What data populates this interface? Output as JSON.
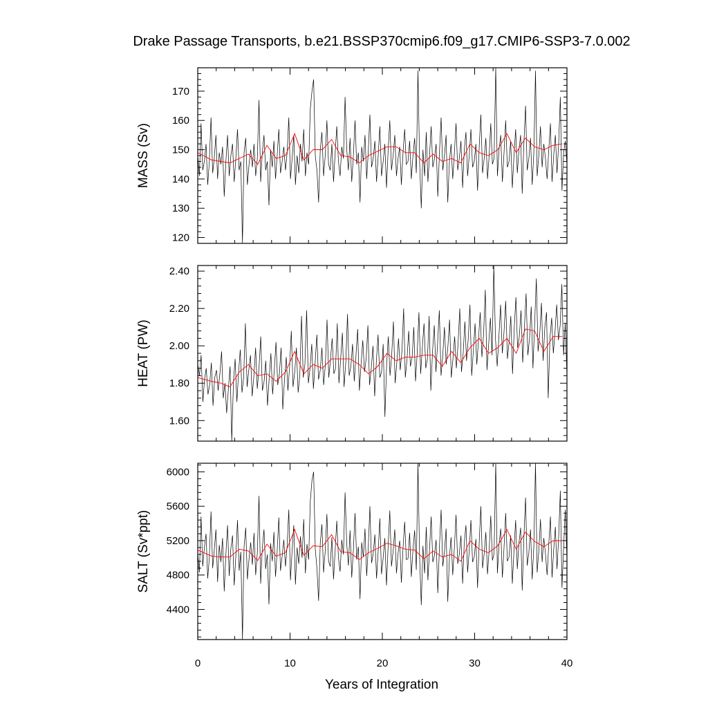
{
  "chart_data": {
    "type": "line",
    "title": "Drake Passage Transports, b.e21.BSSP370cmip6.f09_g17.CMIP6-SSP3-7.0.002",
    "xlabel": "Years of Integration",
    "xlim": [
      0,
      40
    ],
    "xticks": [
      0,
      10,
      20,
      30,
      40
    ],
    "xtick_labels": [
      "0",
      "10",
      "20",
      "30",
      "40"
    ],
    "colors": {
      "monthly": "#000000",
      "annual": "#ff0000"
    },
    "panels": [
      {
        "ylabel": "MASS (Sv)",
        "ylim": [
          118,
          178
        ],
        "yticks": [
          120,
          130,
          140,
          150,
          160,
          170
        ],
        "ytick_labels": [
          "120",
          "130",
          "140",
          "150",
          "160",
          "170"
        ],
        "series": [
          {
            "values": [
              148,
              141,
              159,
              143,
              146,
              152,
              138,
              146,
              161,
              142,
              147,
              155,
              140,
              149,
              145,
              151,
              134,
              146,
              155,
              141,
              148,
              152,
              139,
              147,
              157,
              143,
              146,
              118,
              149,
              154,
              138,
              145,
              150,
              144,
              152,
              141,
              147,
              167,
              139,
              149,
              155,
              143,
              146,
              131,
              150,
              144,
              153,
              140,
              148,
              157,
              142,
              146,
              151,
              143,
              149,
              161,
              140,
              147,
              155,
              138,
              148,
              142,
              152,
              146,
              157,
              141,
              149,
              145,
              164,
              170,
              174,
              148,
              143,
              132,
              150,
              156,
              141,
              148,
              160,
              145,
              143,
              152,
              139,
              149,
              158,
              146,
              141,
              151,
              147,
              168,
              150,
              143,
              154,
              139,
              148,
              160,
              145,
              149,
              132,
              151,
              146,
              155,
              140,
              149,
              162,
              144,
              147,
              153,
              139,
              148,
              158,
              141,
              146,
              152,
              137,
              150,
              160,
              143,
              148,
              155,
              141,
              147,
              151,
              138,
              149,
              157,
              145,
              146,
              153,
              140,
              148,
              154,
              142,
              177,
              146,
              130,
              150,
              141,
              156,
              139,
              148,
              158,
              144,
              147,
              152,
              134,
              149,
              161,
              143,
              148,
              155,
              132,
              146,
              152,
              140,
              149,
              159,
              143,
              147,
              153,
              137,
              150,
              156,
              141,
              148,
              157,
              144,
              146,
              152,
              136,
              151,
              162,
              142,
              147,
              154,
              140,
              148,
              159,
              145,
              147,
              178,
              141,
              150,
              155,
              139,
              149,
              160,
              144,
              146,
              153,
              137,
              148,
              157,
              142,
              150,
              155,
              135,
              152,
              165,
              143,
              147,
              154,
              138,
              149,
              177,
              141,
              148,
              158,
              144,
              152,
              147,
              140,
              150,
              159,
              139,
              148,
              155,
              142,
              152,
              168,
              136,
              149,
              153,
              145
            ],
            "year_step": 0.06
          },
          {
            "x": [
              0,
              1.5,
              2.5,
              3.5,
              4.5,
              5.5,
              6.5,
              7.5,
              8.5,
              9.5,
              10.5,
              11.5,
              12.5,
              13.5,
              14.5,
              15.5,
              16.5,
              17.5,
              18.5,
              19.5,
              20.5,
              21.5,
              22.5,
              23.5,
              24.5,
              25.5,
              26.5,
              27.5,
              28.5,
              29.5,
              30.5,
              31.5,
              32.5,
              33.5,
              34.5,
              35.5,
              36.5,
              37.5,
              38.5,
              39.5
            ],
            "values": [
              149,
              146.5,
              146,
              145.5,
              147,
              148.5,
              145,
              151.5,
              147,
              148,
              155.5,
              146.5,
              150,
              150,
              153.5,
              148,
              147.5,
              145.5,
              148,
              149.5,
              151,
              151,
              149,
              149,
              145.5,
              148.5,
              146,
              147,
              145.5,
              152,
              149,
              148,
              150,
              155.5,
              149,
              154,
              151,
              150,
              151.5,
              152
            ]
          }
        ]
      },
      {
        "ylabel": "HEAT (PW)",
        "ylim": [
          1.49,
          2.43
        ],
        "yticks": [
          1.6,
          1.8,
          2.0,
          2.2,
          2.4
        ],
        "ytick_labels": [
          "1.60",
          "1.80",
          "2.00",
          "2.20",
          "2.40"
        ],
        "series": [
          {
            "values": [
              1.9,
              1.84,
              1.95,
              1.7,
              1.82,
              1.88,
              1.74,
              1.79,
              1.91,
              1.68,
              1.83,
              1.87,
              1.76,
              1.85,
              1.97,
              1.72,
              1.8,
              1.64,
              1.77,
              1.89,
              1.49,
              1.81,
              1.93,
              1.7,
              1.86,
              1.98,
              1.75,
              1.83,
              2.12,
              1.78,
              1.87,
              1.95,
              1.73,
              1.84,
              1.99,
              1.77,
              1.88,
              2.05,
              1.76,
              1.81,
              1.92,
              1.68,
              1.83,
              1.96,
              1.74,
              1.87,
              2.02,
              1.79,
              1.85,
              1.99,
              1.66,
              1.82,
              1.94,
              1.76,
              1.89,
              2.08,
              1.78,
              1.86,
              1.99,
              1.75,
              1.84,
              2.16,
              1.83,
              1.9,
              2.19,
              1.8,
              1.88,
              2.01,
              1.77,
              1.91,
              2.06,
              1.82,
              1.87,
              1.99,
              1.79,
              1.9,
              2.14,
              1.83,
              1.92,
              2.04,
              1.85,
              1.88,
              2.12,
              1.8,
              1.93,
              2.07,
              1.78,
              1.91,
              2.17,
              1.84,
              1.89,
              2.01,
              1.81,
              1.95,
              2.09,
              1.76,
              1.9,
              2.03,
              1.86,
              1.93,
              2.11,
              1.79,
              1.88,
              2.0,
              1.73,
              1.92,
              2.06,
              1.83,
              1.86,
              2.01,
              1.62,
              1.9,
              2.05,
              1.84,
              1.95,
              2.13,
              1.8,
              1.91,
              2.04,
              1.87,
              1.97,
              2.2,
              1.83,
              1.93,
              2.08,
              1.89,
              1.94,
              2.1,
              1.81,
              1.96,
              2.18,
              1.85,
              1.99,
              2.12,
              1.88,
              1.93,
              2.16,
              1.76,
              1.97,
              2.11,
              1.86,
              2.02,
              2.19,
              1.84,
              1.95,
              2.1,
              1.9,
              1.99,
              2.14,
              1.83,
              1.93,
              2.05,
              1.88,
              2.01,
              2.2,
              1.86,
              1.96,
              2.13,
              1.92,
              2.04,
              2.22,
              1.84,
              1.98,
              2.12,
              1.9,
              2.03,
              2.18,
              1.94,
              2.06,
              2.3,
              1.87,
              2.01,
              2.15,
              1.95,
              2.43,
              2.04,
              1.89,
              2.05,
              2.22,
              1.96,
              2.07,
              2.24,
              1.93,
              2.02,
              2.16,
              1.85,
              2.09,
              2.26,
              1.99,
              2.05,
              2.19,
              1.91,
              2.1,
              2.28,
              1.95,
              2.04,
              2.21,
              1.88,
              2.11,
              2.36,
              1.97,
              2.06,
              2.23,
              1.92,
              2.1,
              2.18,
              1.72,
              2.04,
              2.15,
              1.96,
              2.08,
              2.22,
              2.03,
              2.11,
              2.33,
              1.95,
              2.12,
              1.84
            ],
            "year_step": 0.06
          },
          {
            "x": [
              0,
              1.5,
              2.5,
              3.5,
              4.5,
              5.5,
              6.5,
              7.5,
              8.5,
              9.5,
              10.5,
              11.5,
              12.5,
              13.5,
              14.5,
              15.5,
              16.5,
              17.5,
              18.5,
              19.5,
              20.5,
              21.5,
              22.5,
              23.5,
              24.5,
              25.5,
              26.5,
              27.5,
              28.5,
              29.5,
              30.5,
              31.5,
              32.5,
              33.5,
              34.5,
              35.5,
              36.5,
              37.5,
              38.5,
              39.5
            ],
            "values": [
              1.83,
              1.81,
              1.8,
              1.78,
              1.86,
              1.9,
              1.84,
              1.85,
              1.81,
              1.86,
              1.97,
              1.85,
              1.9,
              1.88,
              1.93,
              1.93,
              1.93,
              1.9,
              1.85,
              1.89,
              1.96,
              1.92,
              1.94,
              1.94,
              1.95,
              1.95,
              1.89,
              1.97,
              1.91,
              1.99,
              2.04,
              1.96,
              1.99,
              2.04,
              1.96,
              2.09,
              2.08,
              1.97,
              2.05,
              2.05
            ]
          }
        ]
      },
      {
        "ylabel": "SALT (Sv*ppt)",
        "ylim": [
          4050,
          6100
        ],
        "yticks": [
          4400,
          4800,
          5200,
          5600,
          6000
        ],
        "ytick_labels": [
          "4400",
          "4800",
          "5200",
          "5600",
          "6000"
        ],
        "series": [
          {
            "values": [
              5050,
              4830,
              5480,
              4900,
              5120,
              5280,
              4760,
              5010,
              5540,
              4880,
              5090,
              5330,
              4720,
              5150,
              4950,
              5230,
              4610,
              5040,
              5380,
              4790,
              5110,
              5260,
              4680,
              5020,
              5440,
              4850,
              5070,
              4050,
              5130,
              5350,
              4750,
              4990,
              5180,
              4920,
              5290,
              4800,
              5060,
              5720,
              4700,
              5110,
              5330,
              4870,
              5040,
              4460,
              5170,
              4960,
              5300,
              4780,
              5080,
              5470,
              4850,
              5020,
              5210,
              4900,
              5140,
              5560,
              4740,
              5090,
              5380,
              4690,
              5120,
              4930,
              5250,
              5000,
              5450,
              4820,
              5160,
              4980,
              5660,
              5900,
              6000,
              5100,
              4880,
              4500,
              5170,
              5390,
              4830,
              5080,
              5510,
              4960,
              4900,
              5240,
              4750,
              5100,
              5430,
              5000,
              4840,
              5210,
              5040,
              5760,
              5160,
              4910,
              5320,
              4770,
              5090,
              5520,
              4980,
              5130,
              4520,
              5180,
              5010,
              5340,
              4790,
              5110,
              5600,
              4940,
              5050,
              5270,
              4760,
              5080,
              5460,
              4810,
              5000,
              5230,
              4680,
              5140,
              5550,
              4900,
              5080,
              5330,
              4820,
              5050,
              5200,
              4710,
              5110,
              5420,
              4980,
              4990,
              5290,
              4780,
              5100,
              5320,
              4860,
              6100,
              5010,
              4450,
              5140,
              4820,
              5360,
              4740,
              5090,
              5480,
              4950,
              5030,
              5210,
              4590,
              5130,
              5560,
              4900,
              5070,
              5340,
              4490,
              5000,
              5240,
              4800,
              5120,
              5500,
              4930,
              5040,
              5260,
              4700,
              5180,
              5380,
              4830,
              5090,
              5440,
              4950,
              5010,
              5220,
              4650,
              5180,
              5600,
              4880,
              5050,
              5300,
              4810,
              5090,
              5490,
              4970,
              5050,
              6100,
              4820,
              5160,
              5340,
              4770,
              5120,
              5520,
              4960,
              5010,
              5260,
              4700,
              5090,
              5440,
              4870,
              5170,
              5350,
              4620,
              5230,
              5700,
              4910,
              5060,
              5330,
              4750,
              5130,
              6100,
              4830,
              5080,
              5450,
              4950,
              5230,
              5050,
              4800,
              5160,
              5480,
              4770,
              5090,
              5360,
              4870,
              5240,
              5780,
              4650,
              5120,
              5560,
              4990
            ],
            "year_step": 0.06
          },
          {
            "x": [
              0,
              1.5,
              2.5,
              3.5,
              4.5,
              5.5,
              6.5,
              7.5,
              8.5,
              9.5,
              10.5,
              11.5,
              12.5,
              13.5,
              14.5,
              15.5,
              16.5,
              17.5,
              18.5,
              19.5,
              20.5,
              21.5,
              22.5,
              23.5,
              24.5,
              25.5,
              26.5,
              27.5,
              28.5,
              29.5,
              30.5,
              31.5,
              32.5,
              33.5,
              34.5,
              35.5,
              36.5,
              37.5,
              38.5,
              39.5
            ],
            "values": [
              5090,
              5020,
              5010,
              5010,
              5100,
              5080,
              4970,
              5160,
              5020,
              5060,
              5330,
              5030,
              5140,
              5130,
              5270,
              5070,
              5060,
              4980,
              5060,
              5110,
              5170,
              5140,
              5100,
              5090,
              4990,
              5080,
              5010,
              5040,
              4960,
              5200,
              5100,
              5060,
              5140,
              5330,
              5100,
              5300,
              5190,
              5130,
              5200,
              5200
            ]
          }
        ]
      }
    ]
  }
}
